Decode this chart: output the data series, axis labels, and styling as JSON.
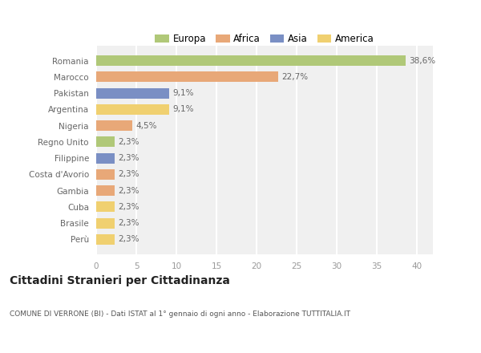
{
  "categories": [
    "Perù",
    "Brasile",
    "Cuba",
    "Gambia",
    "Costa d'Avorio",
    "Filippine",
    "Regno Unito",
    "Nigeria",
    "Argentina",
    "Pakistan",
    "Marocco",
    "Romania"
  ],
  "values": [
    2.3,
    2.3,
    2.3,
    2.3,
    2.3,
    2.3,
    2.3,
    4.5,
    9.1,
    9.1,
    22.7,
    38.6
  ],
  "labels": [
    "2,3%",
    "2,3%",
    "2,3%",
    "2,3%",
    "2,3%",
    "2,3%",
    "2,3%",
    "4,5%",
    "9,1%",
    "9,1%",
    "22,7%",
    "38,6%"
  ],
  "colors": [
    "#f0d070",
    "#f0d070",
    "#f0d070",
    "#e8a878",
    "#e8a878",
    "#7a8fc4",
    "#b0c878",
    "#e8a878",
    "#f0d070",
    "#7a8fc4",
    "#e8a878",
    "#b0c878"
  ],
  "continent_colors": {
    "Europa": "#b0c878",
    "Africa": "#e8a878",
    "Asia": "#7a8fc4",
    "America": "#f0d070"
  },
  "title": "Cittadini Stranieri per Cittadinanza",
  "subtitle": "COMUNE DI VERRONE (BI) - Dati ISTAT al 1° gennaio di ogni anno - Elaborazione TUTTITALIA.IT",
  "xlim": [
    0,
    42
  ],
  "xticks": [
    0,
    5,
    10,
    15,
    20,
    25,
    30,
    35,
    40
  ],
  "background_color": "#ffffff",
  "bar_bg_color": "#f0f0f0",
  "grid_color": "#ffffff"
}
